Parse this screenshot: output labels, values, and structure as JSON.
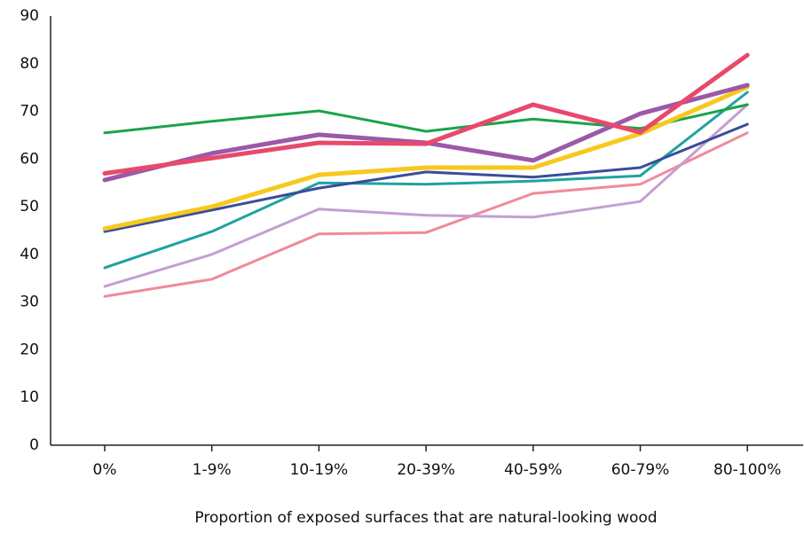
{
  "chart_data": {
    "type": "line",
    "x_label": "Proportion of exposed surfaces that are natural-looking wood",
    "categories": [
      "0%",
      "1-9%",
      "10-19%",
      "20-39%",
      "40-59%",
      "60-79%",
      "80-100%"
    ],
    "ylim": [
      0,
      90
    ],
    "yticks": [
      0,
      10,
      20,
      30,
      40,
      50,
      60,
      70,
      80,
      90
    ],
    "series": [
      {
        "color": "#f08a9b",
        "line_width": 3,
        "values": [
          31.2,
          34.8,
          44.3,
          44.6,
          52.8,
          54.7,
          65.5
        ]
      },
      {
        "color": "#c49fd0",
        "line_width": 3,
        "values": [
          33.3,
          40.0,
          49.5,
          48.2,
          47.8,
          51.1,
          71.4
        ]
      },
      {
        "color": "#1fa3a0",
        "line_width": 3,
        "values": [
          37.2,
          44.8,
          55.0,
          54.7,
          55.4,
          56.5,
          74.0
        ]
      },
      {
        "color": "#3a4c9b",
        "line_width": 3,
        "values": [
          44.8,
          49.3,
          53.9,
          57.3,
          56.2,
          58.2,
          67.3
        ]
      },
      {
        "color": "#1aa34a",
        "line_width": 3,
        "values": [
          65.5,
          67.9,
          70.1,
          65.8,
          68.4,
          66.4,
          71.4
        ]
      },
      {
        "color": "#f7c81e",
        "line_width": 5,
        "values": [
          45.4,
          50.0,
          56.7,
          58.2,
          58.2,
          65.3,
          75.1
        ]
      },
      {
        "color": "#9b59a8",
        "line_width": 5,
        "values": [
          55.6,
          61.2,
          65.1,
          63.4,
          59.7,
          69.5,
          75.5
        ]
      },
      {
        "color": "#e8496b",
        "line_width": 5,
        "values": [
          57.0,
          60.2,
          63.4,
          63.2,
          71.4,
          65.6,
          81.8
        ]
      }
    ]
  }
}
